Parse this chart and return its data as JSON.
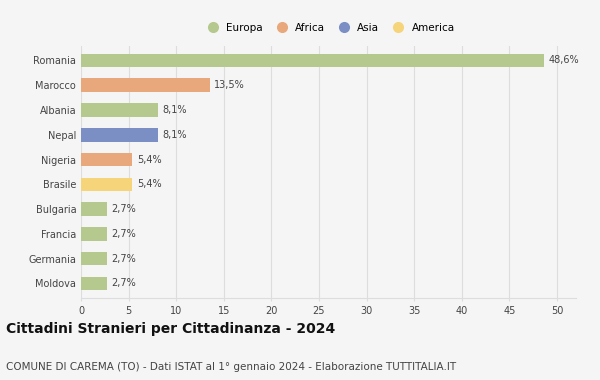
{
  "categories": [
    "Romania",
    "Marocco",
    "Albania",
    "Nepal",
    "Nigeria",
    "Brasile",
    "Bulgaria",
    "Francia",
    "Germania",
    "Moldova"
  ],
  "values": [
    48.6,
    13.5,
    8.1,
    8.1,
    5.4,
    5.4,
    2.7,
    2.7,
    2.7,
    2.7
  ],
  "labels": [
    "48,6%",
    "13,5%",
    "8,1%",
    "8,1%",
    "5,4%",
    "5,4%",
    "2,7%",
    "2,7%",
    "2,7%",
    "2,7%"
  ],
  "colors": [
    "#b5c98e",
    "#e8a87c",
    "#b5c98e",
    "#7b8fc4",
    "#e8a87c",
    "#f5d47a",
    "#b5c98e",
    "#b5c98e",
    "#b5c98e",
    "#b5c98e"
  ],
  "legend_labels": [
    "Europa",
    "Africa",
    "Asia",
    "America"
  ],
  "legend_colors": [
    "#b5c98e",
    "#e8a87c",
    "#7b8fc4",
    "#f5d47a"
  ],
  "xlim": [
    0,
    52
  ],
  "xticks": [
    0,
    5,
    10,
    15,
    20,
    25,
    30,
    35,
    40,
    45,
    50
  ],
  "title": "Cittadini Stranieri per Cittadinanza - 2024",
  "subtitle": "COMUNE DI CAREMA (TO) - Dati ISTAT al 1° gennaio 2024 - Elaborazione TUTTITALIA.IT",
  "background_color": "#f5f5f5",
  "plot_bg_color": "#f5f5f5",
  "grid_color": "#dddddd",
  "bar_height": 0.55,
  "title_fontsize": 10,
  "subtitle_fontsize": 7.5,
  "label_fontsize": 7,
  "tick_fontsize": 7,
  "legend_fontsize": 7.5
}
